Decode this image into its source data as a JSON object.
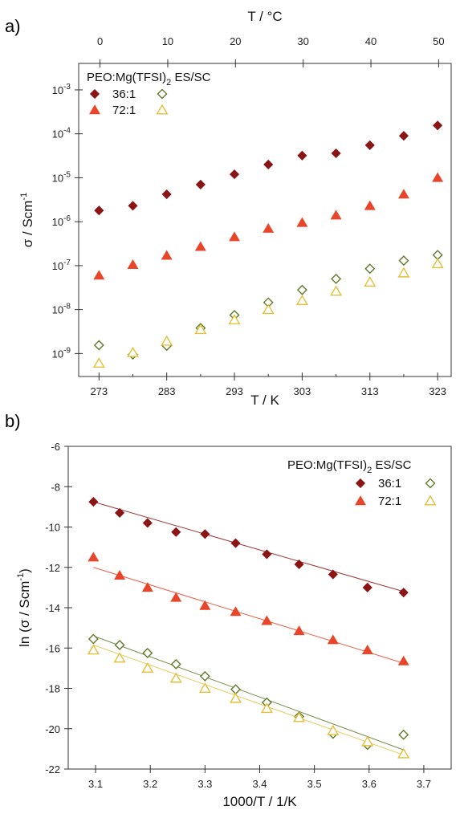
{
  "panel_a_label": "a)",
  "panel_b_label": "b)",
  "chart_data": [
    {
      "type": "scatter",
      "panel": "a)",
      "xlabel": "T / K",
      "x2label": "T / °C",
      "ylabel": "σ / Scm⁻¹",
      "ylabel_main": "σ / Scm",
      "ylabel_sup": "-1",
      "xlim": [
        270,
        325
      ],
      "x2_ticks": [
        "0",
        "10",
        "20",
        "30",
        "40",
        "50"
      ],
      "x2_tick_positions_K": [
        273.15,
        283.15,
        293.15,
        303.15,
        313.15,
        323.15
      ],
      "y_scale": "log",
      "ylim": [
        3e-10,
        0.004
      ],
      "x_ticks": [
        273,
        283,
        293,
        303,
        313,
        323
      ],
      "x_tick_labels": [
        "273",
        "283",
        "293",
        "303",
        "313",
        "323"
      ],
      "y_ticks": [
        1e-09,
        1e-08,
        1e-07,
        1e-06,
        1e-05,
        0.0001,
        0.001
      ],
      "y_tick_exps": [
        "-9",
        "-8",
        "-7",
        "-6",
        "-5",
        "-4",
        "-3"
      ],
      "legend": {
        "title_main": "PEO:Mg(TFSI)",
        "title_sub": "2",
        "title_tail": " ES/SC",
        "rows": [
          "36:1",
          "72:1"
        ],
        "placement": "top-left"
      },
      "series": [
        {
          "name": "36:1 ES",
          "marker": "diamond",
          "filled": true,
          "color": "#8B1414",
          "x": [
            273,
            278,
            283,
            288,
            293,
            298,
            303,
            308,
            313,
            318,
            323
          ],
          "y": [
            1.8e-06,
            2.3e-06,
            4.2e-06,
            7e-06,
            1.2e-05,
            2e-05,
            3.2e-05,
            3.6e-05,
            5.5e-05,
            9e-05,
            0.000155
          ]
        },
        {
          "name": "36:1 SC",
          "marker": "diamond",
          "filled": false,
          "color": "#5E7A2A",
          "x": [
            273,
            278,
            283,
            288,
            293,
            298,
            303,
            308,
            313,
            318,
            323
          ],
          "y": [
            1.55e-09,
            9.5e-10,
            1.5e-09,
            3.8e-09,
            7.5e-09,
            1.45e-08,
            2.8e-08,
            5e-08,
            8.5e-08,
            1.3e-07,
            1.75e-07
          ]
        },
        {
          "name": "72:1 ES",
          "marker": "triangle",
          "filled": true,
          "color": "#E8452A",
          "x": [
            273,
            278,
            283,
            288,
            293,
            298,
            303,
            308,
            313,
            318,
            323
          ],
          "y": [
            6e-08,
            1.05e-07,
            1.7e-07,
            2.7e-07,
            4.5e-07,
            7e-07,
            9.5e-07,
            1.4e-06,
            2.3e-06,
            4.2e-06,
            1e-05
          ]
        },
        {
          "name": "72:1 SC",
          "marker": "triangle",
          "filled": false,
          "color": "#E3BF3A",
          "x": [
            273,
            278,
            283,
            288,
            293,
            298,
            303,
            308,
            313,
            318,
            323
          ],
          "y": [
            6e-10,
            1.05e-09,
            1.9e-09,
            3.5e-09,
            5.8e-09,
            1e-08,
            1.6e-08,
            2.6e-08,
            4.2e-08,
            6.8e-08,
            1.1e-07
          ]
        }
      ]
    },
    {
      "type": "scatter",
      "panel": "b)",
      "xlabel": "1000/T / 1/K",
      "ylabel": "ln (σ / Scm⁻¹)",
      "ylabel_main": "ln (σ / Scm",
      "ylabel_sup": "-1",
      "ylabel_tail": ")",
      "xlim": [
        3.05,
        3.75
      ],
      "ylim": [
        -22,
        -6
      ],
      "x_ticks": [
        3.1,
        3.2,
        3.3,
        3.4,
        3.5,
        3.6,
        3.7
      ],
      "x_tick_labels": [
        "3.1",
        "3.2",
        "3.3",
        "3.4",
        "3.5",
        "3.6",
        "3.7"
      ],
      "y_ticks": [
        -22,
        -20,
        -18,
        -16,
        -14,
        -12,
        -10,
        -8,
        -6
      ],
      "y_tick_labels": [
        "-22",
        "-20",
        "-18",
        "-16",
        "-14",
        "-12",
        "-10",
        "-8",
        "-6"
      ],
      "legend": {
        "title_main": "PEO:Mg(TFSI)",
        "title_sub": "2",
        "title_tail": " ES/SC",
        "rows": [
          "36:1",
          "72:1"
        ],
        "placement": "top-right"
      },
      "series": [
        {
          "name": "36:1 ES",
          "marker": "diamond",
          "filled": true,
          "color": "#8B1414",
          "x": [
            3.096,
            3.144,
            3.195,
            3.247,
            3.3,
            3.356,
            3.413,
            3.472,
            3.534,
            3.597,
            3.663
          ],
          "y": [
            -8.75,
            -9.3,
            -9.8,
            -10.25,
            -10.35,
            -10.8,
            -11.35,
            -11.85,
            -12.35,
            -13.0,
            -13.25
          ],
          "fit": [
            [
              3.096,
              -8.75
            ],
            [
              3.663,
              -13.2
            ]
          ]
        },
        {
          "name": "36:1 SC",
          "marker": "diamond",
          "filled": false,
          "color": "#5E7A2A",
          "x": [
            3.096,
            3.144,
            3.195,
            3.247,
            3.3,
            3.356,
            3.413,
            3.472,
            3.534,
            3.597,
            3.663
          ],
          "y": [
            -15.55,
            -15.85,
            -16.25,
            -16.8,
            -17.4,
            -18.05,
            -18.7,
            -19.4,
            -20.25,
            -20.8,
            -20.3
          ],
          "fit": [
            [
              3.096,
              -15.4
            ],
            [
              3.663,
              -21.05
            ]
          ]
        },
        {
          "name": "72:1 ES",
          "marker": "triangle",
          "filled": true,
          "color": "#E8452A",
          "x": [
            3.096,
            3.144,
            3.195,
            3.247,
            3.3,
            3.356,
            3.413,
            3.472,
            3.534,
            3.597,
            3.663
          ],
          "y": [
            -11.5,
            -12.4,
            -13.0,
            -13.5,
            -13.9,
            -14.2,
            -14.65,
            -15.15,
            -15.6,
            -16.1,
            -16.65
          ],
          "fit": [
            [
              3.096,
              -12.0
            ],
            [
              3.663,
              -16.75
            ]
          ]
        },
        {
          "name": "72:1 SC",
          "marker": "triangle",
          "filled": false,
          "color": "#E3BF3A",
          "x": [
            3.096,
            3.144,
            3.195,
            3.247,
            3.3,
            3.356,
            3.413,
            3.472,
            3.534,
            3.597,
            3.663
          ],
          "y": [
            -16.1,
            -16.5,
            -17.0,
            -17.5,
            -18.0,
            -18.5,
            -19.0,
            -19.45,
            -20.1,
            -20.65,
            -21.25
          ],
          "fit": [
            [
              3.096,
              -15.85
            ],
            [
              3.663,
              -21.3
            ]
          ]
        }
      ]
    }
  ]
}
